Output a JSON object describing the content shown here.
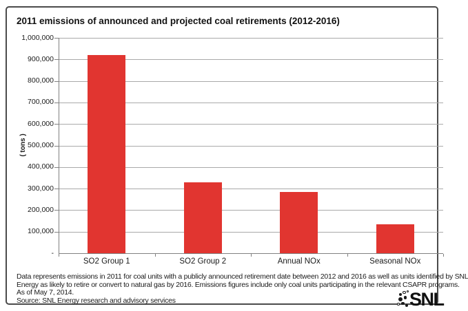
{
  "title": "2011 emissions of announced and projected coal retirements (2012-2016)",
  "chart_data": {
    "type": "bar",
    "title": "2011 emissions of announced and projected coal retirements (2012-2016)",
    "categories": [
      "SO2 Group 1",
      "SO2 Group 2",
      "Annual NOx",
      "Seasonal NOx"
    ],
    "values": [
      920000,
      330000,
      285000,
      135000
    ],
    "xlabel": "",
    "ylabel": "( tons )",
    "ylim": [
      0,
      1000000
    ],
    "ytick_step": 100000,
    "ytick_labels": [
      "-",
      "100,000",
      "200,000",
      "300,000",
      "400,000",
      "500,000",
      "600,000",
      "700,000",
      "800,000",
      "900,000",
      "1,000,000"
    ],
    "grid": true,
    "legend": "none",
    "bar_color": "#e13530"
  },
  "footer": {
    "note_lines": [
      "Data represents emissions in 2011 for coal units with a publicly announced retirement date between 2012 and 2016 as well as units identified by SNL",
      "Energy as likely to retire or convert to natural gas by 2016. Emissions figures include only coal units participating in the relevant CSAPR programs.",
      "As of May 7, 2014."
    ],
    "source": "Source: SNL Energy research and advisory services"
  },
  "logo": {
    "text": "SNL"
  },
  "colors": {
    "bar": "#e13530",
    "grid": "#a9a9a9",
    "axis": "#808080",
    "frame": "#4a4a4a",
    "text": "#1a1a1a"
  }
}
